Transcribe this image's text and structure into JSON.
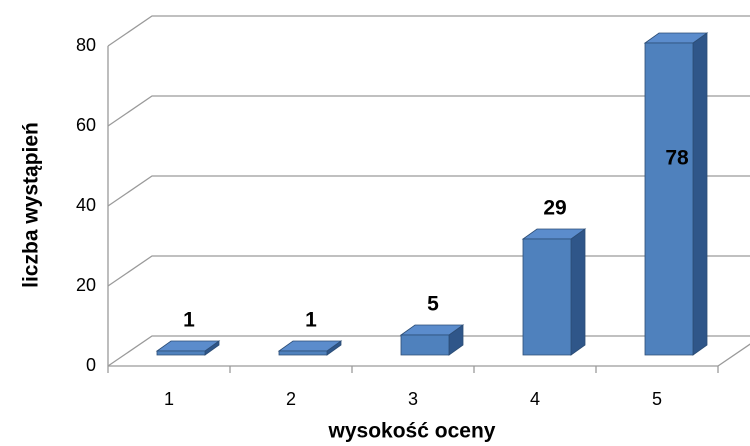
{
  "chart_data": {
    "type": "bar3d",
    "x_label": "wysokość oceny",
    "y_label": "liczba wystąpień",
    "categories": [
      "1",
      "2",
      "3",
      "4",
      "5"
    ],
    "values": [
      1,
      1,
      5,
      29,
      78
    ],
    "color": "#4f81bd",
    "ylim": [
      0,
      80
    ],
    "yticks": [
      0,
      20,
      40,
      60,
      80
    ],
    "grid": true
  }
}
